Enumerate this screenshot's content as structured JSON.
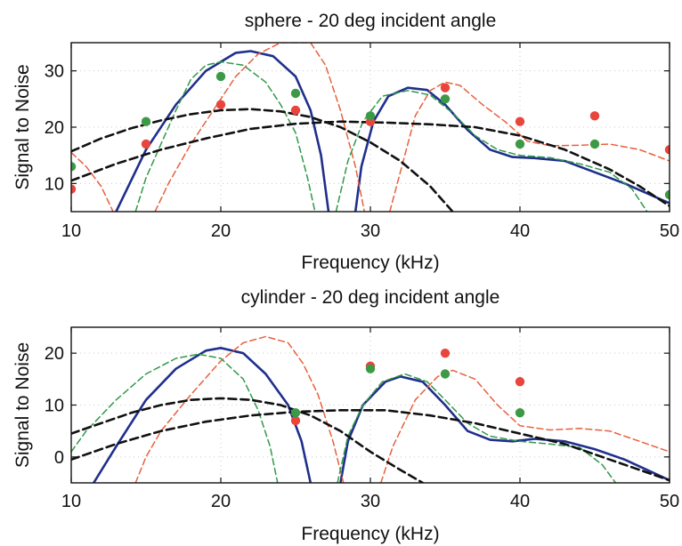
{
  "chart_data": [
    {
      "type": "line",
      "title": "sphere - 20 deg incident angle",
      "xlabel": "Frequency (kHz)",
      "ylabel": "Signal to Noise",
      "xlim": [
        10,
        50
      ],
      "ylim": [
        5,
        35
      ],
      "xticks": [
        10,
        20,
        30,
        40,
        50
      ],
      "yticks": [
        10,
        20,
        30
      ],
      "grid": true,
      "series": [
        {
          "kind": "line",
          "color": "#1f2f8c",
          "style": "solid",
          "width": 2.6,
          "points": [
            [
              13.0,
              5
            ],
            [
              15,
              16
            ],
            [
              17,
              24
            ],
            [
              19,
              30
            ],
            [
              21,
              33.2
            ],
            [
              22,
              33.5
            ],
            [
              23.5,
              32.6
            ],
            [
              25,
              29
            ],
            [
              26,
              23
            ],
            [
              26.7,
              15
            ],
            [
              27.2,
              5
            ],
            [
              null,
              null
            ],
            [
              29,
              5
            ],
            [
              29.4,
              13
            ],
            [
              30.2,
              21
            ],
            [
              31.2,
              25.5
            ],
            [
              32.5,
              27
            ],
            [
              33.8,
              26.6
            ],
            [
              35,
              24
            ],
            [
              36.5,
              19.5
            ],
            [
              38,
              16
            ],
            [
              39.5,
              14.7
            ],
            [
              41,
              14.5
            ],
            [
              43,
              14
            ],
            [
              45,
              12
            ],
            [
              47,
              10
            ],
            [
              50,
              6.5
            ]
          ]
        },
        {
          "kind": "line",
          "color": "#e8603c",
          "style": "dash",
          "width": 1.5,
          "points": [
            [
              10,
              15.5
            ],
            [
              11,
              13
            ],
            [
              12,
              9.5
            ],
            [
              12.8,
              5
            ],
            [
              null,
              null
            ],
            [
              15.6,
              5
            ],
            [
              16.5,
              10
            ],
            [
              18,
              17
            ],
            [
              19.5,
              23
            ],
            [
              21,
              29
            ],
            [
              22.5,
              33
            ],
            [
              24,
              35
            ],
            [
              26,
              35
            ],
            [
              27,
              31
            ],
            [
              28,
              23
            ],
            [
              29,
              13
            ],
            [
              29.6,
              5
            ],
            [
              null,
              null
            ],
            [
              31.3,
              5
            ],
            [
              32,
              12
            ],
            [
              33,
              22
            ],
            [
              34,
              26.5
            ],
            [
              35,
              28
            ],
            [
              36,
              27.4
            ],
            [
              37.5,
              24
            ],
            [
              39,
              21
            ],
            [
              40.5,
              17.5
            ],
            [
              42,
              16.7
            ],
            [
              44,
              16.8
            ],
            [
              46,
              17
            ],
            [
              48,
              16
            ],
            [
              50,
              14
            ]
          ]
        },
        {
          "kind": "line",
          "color": "#2f9a47",
          "style": "dash",
          "width": 1.5,
          "points": [
            [
              14.3,
              5
            ],
            [
              15,
              11
            ],
            [
              16,
              17
            ],
            [
              17,
              23
            ],
            [
              18,
              28.5
            ],
            [
              19,
              31
            ],
            [
              20,
              31.6
            ],
            [
              21.5,
              31
            ],
            [
              23,
              28
            ],
            [
              24,
              24
            ],
            [
              25,
              19
            ],
            [
              25.8,
              11
            ],
            [
              26.3,
              5
            ],
            [
              null,
              null
            ],
            [
              27.7,
              5
            ],
            [
              28.5,
              14
            ],
            [
              29.5,
              21
            ],
            [
              30.8,
              25.5
            ],
            [
              32.5,
              26.5
            ],
            [
              34,
              25.7
            ],
            [
              35.5,
              22.5
            ],
            [
              37,
              18.5
            ],
            [
              38.5,
              16
            ],
            [
              40,
              15
            ],
            [
              42,
              14.6
            ],
            [
              44,
              13.5
            ],
            [
              46,
              12
            ],
            [
              47.5,
              9
            ],
            [
              48.5,
              5
            ]
          ]
        },
        {
          "kind": "line",
          "color": "#111111",
          "style": "dash",
          "width": 2.6,
          "points": [
            [
              10,
              15.7
            ],
            [
              12,
              18
            ],
            [
              14,
              19.8
            ],
            [
              16,
              21.2
            ],
            [
              18,
              22.3
            ],
            [
              20,
              23
            ],
            [
              22,
              23.2
            ],
            [
              24,
              22.8
            ],
            [
              26,
              21.8
            ],
            [
              28,
              20
            ],
            [
              30,
              17.3
            ],
            [
              32,
              14
            ],
            [
              34,
              9.5
            ],
            [
              35.5,
              5
            ]
          ]
        },
        {
          "kind": "line",
          "color": "#111111",
          "style": "dash",
          "width": 2.6,
          "points": [
            [
              10,
              10.5
            ],
            [
              13,
              13.5
            ],
            [
              16,
              16
            ],
            [
              19,
              18
            ],
            [
              22,
              19.7
            ],
            [
              25,
              20.6
            ],
            [
              28,
              21
            ],
            [
              31,
              20.8
            ],
            [
              34,
              20.5
            ],
            [
              37,
              20
            ],
            [
              40,
              18.5
            ],
            [
              43,
              16
            ],
            [
              46,
              12.5
            ],
            [
              48,
              9.5
            ],
            [
              50,
              6
            ]
          ]
        },
        {
          "kind": "scatter",
          "color": "#e8453c",
          "points": [
            [
              10,
              9
            ],
            [
              15,
              17
            ],
            [
              20,
              24
            ],
            [
              25,
              23
            ],
            [
              30,
              21
            ],
            [
              35,
              27
            ],
            [
              40,
              21
            ],
            [
              45,
              22
            ],
            [
              50,
              16
            ]
          ]
        },
        {
          "kind": "scatter",
          "color": "#3c9a47",
          "points": [
            [
              10,
              13
            ],
            [
              15,
              21
            ],
            [
              20,
              29
            ],
            [
              25,
              26
            ],
            [
              30,
              22
            ],
            [
              35,
              25
            ],
            [
              40,
              17
            ],
            [
              45,
              17
            ],
            [
              50,
              8
            ]
          ]
        }
      ]
    },
    {
      "type": "line",
      "title": "cylinder - 20 deg incident angle",
      "xlabel": "Frequency (kHz)",
      "ylabel": "Signal to Noise",
      "xlim": [
        10,
        50
      ],
      "ylim": [
        -5,
        25
      ],
      "xticks": [
        10,
        20,
        30,
        40,
        50
      ],
      "yticks": [
        0,
        10,
        20
      ],
      "grid": true,
      "series": [
        {
          "kind": "line",
          "color": "#1f2f8c",
          "style": "solid",
          "width": 2.6,
          "points": [
            [
              11.5,
              -5
            ],
            [
              13,
              2
            ],
            [
              15,
              11
            ],
            [
              17,
              17
            ],
            [
              19,
              20.5
            ],
            [
              20,
              21
            ],
            [
              21.5,
              20
            ],
            [
              23,
              16
            ],
            [
              24.5,
              10
            ],
            [
              25.4,
              3
            ],
            [
              26,
              -5
            ],
            [
              null,
              null
            ],
            [
              28,
              -5
            ],
            [
              28.5,
              3
            ],
            [
              29.5,
              10
            ],
            [
              31,
              14.5
            ],
            [
              32,
              15.5
            ],
            [
              33.5,
              14.5
            ],
            [
              35,
              10
            ],
            [
              36.5,
              5
            ],
            [
              38,
              3.3
            ],
            [
              39.5,
              3
            ],
            [
              41,
              3.5
            ],
            [
              43,
              3
            ],
            [
              45,
              1.5
            ],
            [
              47,
              -0.5
            ],
            [
              50,
              -4.5
            ]
          ]
        },
        {
          "kind": "line",
          "color": "#e8603c",
          "style": "dash",
          "width": 1.5,
          "points": [
            [
              14.3,
              -5
            ],
            [
              15,
              0
            ],
            [
              16,
              5
            ],
            [
              18,
              12
            ],
            [
              20,
              18.5
            ],
            [
              21.5,
              22
            ],
            [
              23,
              23.2
            ],
            [
              24.5,
              22
            ],
            [
              25.5,
              18
            ],
            [
              26.5,
              12
            ],
            [
              27.5,
              3
            ],
            [
              28.2,
              -5
            ],
            [
              null,
              null
            ],
            [
              30.7,
              -5
            ],
            [
              31.5,
              2
            ],
            [
              33,
              11
            ],
            [
              34.5,
              15.5
            ],
            [
              35.5,
              16.7
            ],
            [
              37,
              15
            ],
            [
              38.5,
              10
            ],
            [
              40,
              6
            ],
            [
              42,
              5.2
            ],
            [
              44,
              5.5
            ],
            [
              46,
              5
            ],
            [
              48,
              3
            ],
            [
              50,
              1
            ]
          ]
        },
        {
          "kind": "line",
          "color": "#2f9a47",
          "style": "dash",
          "width": 1.5,
          "points": [
            [
              10,
              1
            ],
            [
              11,
              5
            ],
            [
              13,
              11
            ],
            [
              15,
              16
            ],
            [
              17,
              19
            ],
            [
              18.5,
              19.8
            ],
            [
              20,
              19
            ],
            [
              21.5,
              15
            ],
            [
              22.5,
              9
            ],
            [
              23.3,
              2
            ],
            [
              23.8,
              -5
            ],
            [
              null,
              null
            ],
            [
              27.8,
              -5
            ],
            [
              28.5,
              4
            ],
            [
              29.5,
              10
            ],
            [
              30.8,
              14.5
            ],
            [
              32.3,
              16
            ],
            [
              33.8,
              14.5
            ],
            [
              35,
              11
            ],
            [
              36.5,
              6.5
            ],
            [
              38,
              4
            ],
            [
              40,
              3
            ],
            [
              42,
              2.5
            ],
            [
              44,
              1.8
            ],
            [
              45.5,
              -1.5
            ],
            [
              46.4,
              -5
            ]
          ]
        },
        {
          "kind": "line",
          "color": "#111111",
          "style": "dash",
          "width": 2.6,
          "points": [
            [
              10,
              4.5
            ],
            [
              12,
              6.5
            ],
            [
              14,
              8.5
            ],
            [
              16,
              10
            ],
            [
              18,
              11
            ],
            [
              20,
              11.3
            ],
            [
              22,
              11
            ],
            [
              24,
              10
            ],
            [
              26,
              8
            ],
            [
              28,
              5
            ],
            [
              30,
              1
            ],
            [
              32,
              -2.5
            ],
            [
              33.5,
              -5
            ]
          ]
        },
        {
          "kind": "line",
          "color": "#111111",
          "style": "dash",
          "width": 2.6,
          "points": [
            [
              10,
              -0.5
            ],
            [
              13,
              2.5
            ],
            [
              16,
              5
            ],
            [
              19,
              6.8
            ],
            [
              22,
              8
            ],
            [
              25,
              8.7
            ],
            [
              28,
              9
            ],
            [
              31,
              9
            ],
            [
              34,
              8
            ],
            [
              37,
              6.5
            ],
            [
              40,
              4.5
            ],
            [
              43,
              2.5
            ],
            [
              46,
              -0.5
            ],
            [
              48,
              -2.5
            ],
            [
              50,
              -4.5
            ]
          ]
        },
        {
          "kind": "scatter",
          "color": "#e8453c",
          "points": [
            [
              25,
              7
            ],
            [
              30,
              17.5
            ],
            [
              35,
              20
            ],
            [
              40,
              14.5
            ]
          ]
        },
        {
          "kind": "scatter",
          "color": "#3c9a47",
          "points": [
            [
              25,
              8.5
            ],
            [
              30,
              17
            ],
            [
              35,
              16
            ],
            [
              40,
              8.5
            ]
          ]
        }
      ]
    }
  ]
}
